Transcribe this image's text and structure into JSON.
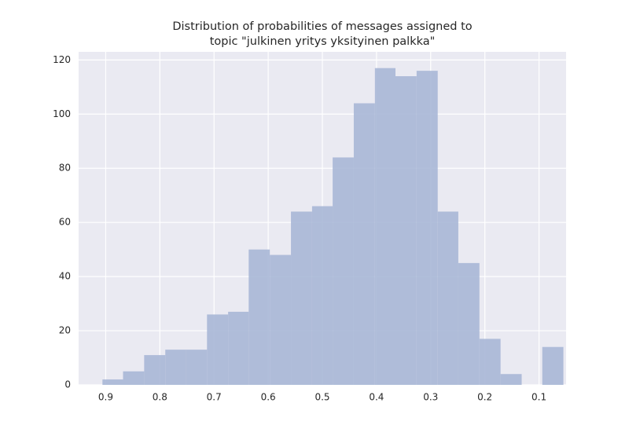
{
  "chart_data": {
    "type": "histogram",
    "title": [
      "Distribution of probabilities of messages assigned to",
      "topic \"julkinen yritys yksityinen palkka\""
    ],
    "bins": [
      0.055,
      0.094,
      0.132,
      0.171,
      0.21,
      0.249,
      0.287,
      0.326,
      0.365,
      0.403,
      0.442,
      0.481,
      0.519,
      0.558,
      0.597,
      0.636,
      0.674,
      0.713,
      0.752,
      0.79,
      0.829,
      0.868,
      0.906
    ],
    "values": [
      14,
      0,
      4,
      17,
      45,
      64,
      116,
      114,
      117,
      104,
      84,
      66,
      64,
      48,
      50,
      27,
      26,
      13,
      13,
      11,
      5,
      2
    ],
    "color": "#a9b7d6",
    "xlim": [
      0.95,
      0.05
    ],
    "xticks": [
      0.9,
      0.8,
      0.7,
      0.6,
      0.5,
      0.4,
      0.3,
      0.2,
      0.1
    ],
    "ylim": [
      0,
      123
    ],
    "yticks": [
      0,
      20,
      40,
      60,
      80,
      100,
      120
    ],
    "grid": true
  }
}
